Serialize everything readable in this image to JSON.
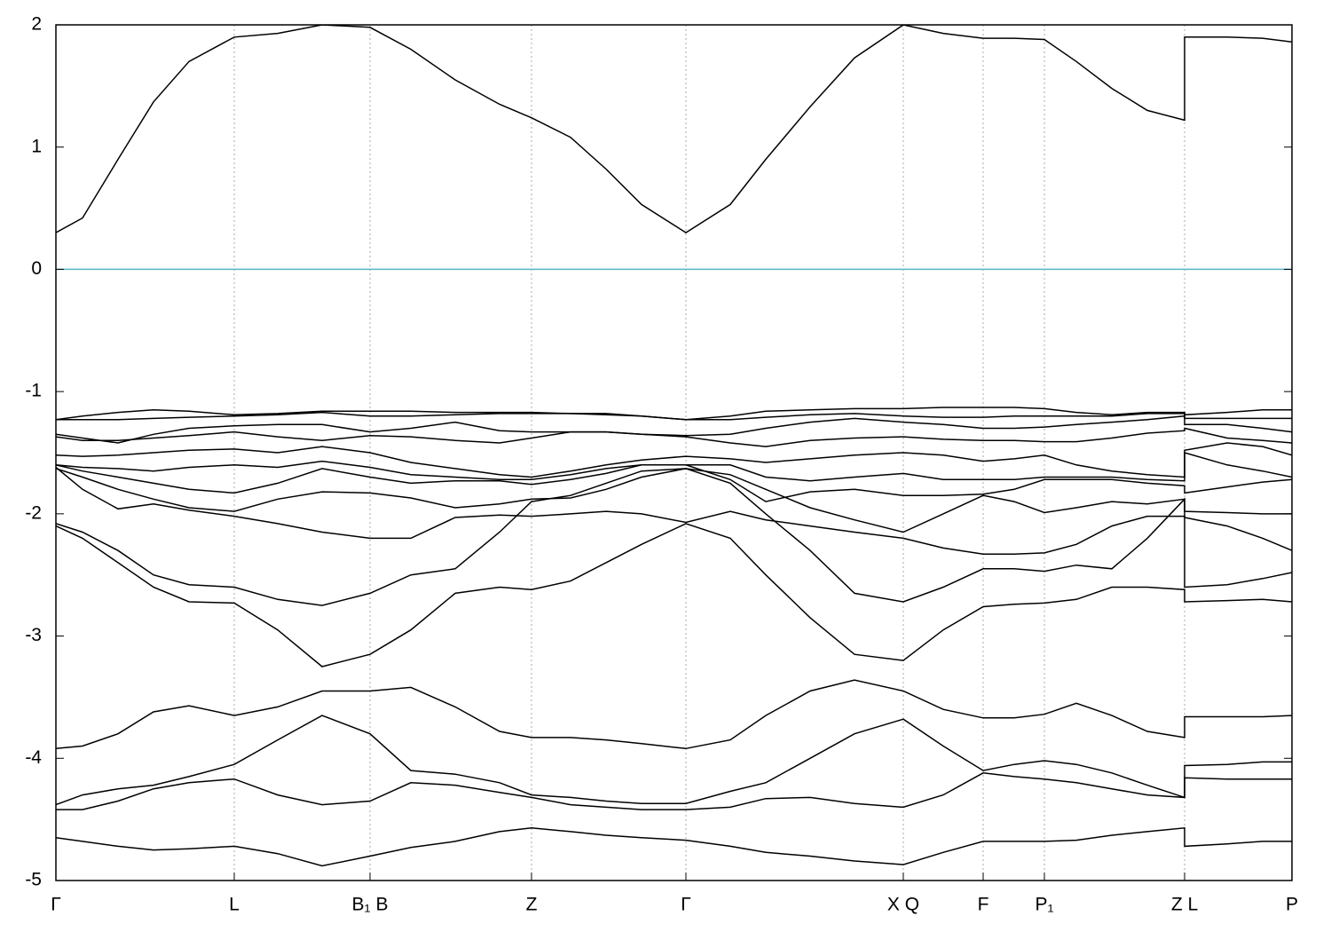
{
  "chart_data": {
    "type": "line",
    "x": [
      0,
      30,
      70,
      110,
      150,
      201,
      250,
      300,
      354,
      400,
      450,
      500,
      536,
      580,
      620,
      660,
      710,
      760,
      800,
      850,
      900,
      955,
      1000,
      1045,
      1080,
      1114,
      1150,
      1190,
      1230,
      1272,
      1272,
      1320,
      1360,
      1393
    ],
    "xlim": [
      0,
      1393
    ],
    "xticks": [
      {
        "value": 0,
        "label": "Γ"
      },
      {
        "value": 201,
        "label": "L"
      },
      {
        "value": 354,
        "label": "B₁ B"
      },
      {
        "value": 536,
        "label": "Z"
      },
      {
        "value": 710,
        "label": "Γ"
      },
      {
        "value": 955,
        "label": "X Q"
      },
      {
        "value": 1045,
        "label": "F"
      },
      {
        "value": 1114,
        "label": "P₁"
      },
      {
        "value": 1272,
        "label": "Z L"
      },
      {
        "value": 1393,
        "label": "P"
      }
    ],
    "ylim": [
      -5,
      2
    ],
    "yticks": [
      2,
      1,
      0,
      -1,
      -2,
      -3,
      -4,
      -5
    ],
    "xgrid": true,
    "reference_line": {
      "y": 0,
      "color": "#5ab4c8"
    },
    "series": [
      {
        "color": "#000000",
        "values": [
          0.3,
          0.42,
          0.9,
          1.37,
          1.7,
          1.9,
          1.93,
          2.0,
          1.98,
          1.8,
          1.55,
          1.35,
          1.24,
          1.08,
          0.82,
          0.53,
          0.3,
          0.53,
          0.9,
          1.33,
          1.73,
          2.0,
          1.93,
          1.89,
          1.89,
          1.88,
          1.7,
          1.48,
          1.3,
          1.22,
          1.9,
          1.9,
          1.89,
          1.86
        ]
      },
      {
        "color": "#000000",
        "values": [
          -1.23,
          -1.2,
          -1.17,
          -1.15,
          -1.16,
          -1.19,
          -1.18,
          -1.16,
          -1.16,
          -1.16,
          -1.17,
          -1.17,
          -1.17,
          -1.18,
          -1.18,
          -1.2,
          -1.23,
          -1.2,
          -1.16,
          -1.15,
          -1.14,
          -1.14,
          -1.13,
          -1.13,
          -1.13,
          -1.14,
          -1.17,
          -1.19,
          -1.17,
          -1.17,
          -1.19,
          -1.17,
          -1.15,
          -1.15
        ]
      },
      {
        "color": "#000000",
        "values": [
          -1.23,
          -1.23,
          -1.23,
          -1.22,
          -1.21,
          -1.2,
          -1.19,
          -1.17,
          -1.2,
          -1.2,
          -1.19,
          -1.18,
          -1.18,
          -1.18,
          -1.19,
          -1.2,
          -1.23,
          -1.23,
          -1.21,
          -1.19,
          -1.18,
          -1.2,
          -1.21,
          -1.21,
          -1.2,
          -1.2,
          -1.2,
          -1.2,
          -1.18,
          -1.18,
          -1.22,
          -1.22,
          -1.22,
          -1.22
        ]
      },
      {
        "color": "#000000",
        "values": [
          -1.35,
          -1.38,
          -1.42,
          -1.35,
          -1.3,
          -1.28,
          -1.27,
          -1.27,
          -1.33,
          -1.3,
          -1.25,
          -1.32,
          -1.33,
          -1.33,
          -1.33,
          -1.35,
          -1.36,
          -1.35,
          -1.3,
          -1.25,
          -1.22,
          -1.25,
          -1.27,
          -1.3,
          -1.3,
          -1.29,
          -1.27,
          -1.25,
          -1.23,
          -1.2,
          -1.27,
          -1.27,
          -1.3,
          -1.33
        ]
      },
      {
        "color": "#000000",
        "values": [
          -1.37,
          -1.4,
          -1.4,
          -1.38,
          -1.36,
          -1.33,
          -1.37,
          -1.4,
          -1.36,
          -1.37,
          -1.4,
          -1.42,
          -1.38,
          -1.33,
          -1.33,
          -1.35,
          -1.37,
          -1.42,
          -1.45,
          -1.4,
          -1.38,
          -1.37,
          -1.39,
          -1.4,
          -1.4,
          -1.41,
          -1.41,
          -1.38,
          -1.34,
          -1.32,
          -1.3,
          -1.38,
          -1.4,
          -1.42
        ]
      },
      {
        "color": "#000000",
        "values": [
          -1.52,
          -1.53,
          -1.52,
          -1.5,
          -1.48,
          -1.47,
          -1.5,
          -1.45,
          -1.5,
          -1.58,
          -1.63,
          -1.68,
          -1.7,
          -1.65,
          -1.6,
          -1.56,
          -1.53,
          -1.55,
          -1.58,
          -1.55,
          -1.52,
          -1.5,
          -1.52,
          -1.57,
          -1.55,
          -1.52,
          -1.6,
          -1.65,
          -1.68,
          -1.7,
          -1.48,
          -1.42,
          -1.45,
          -1.52
        ]
      },
      {
        "color": "#000000",
        "values": [
          -1.6,
          -1.62,
          -1.63,
          -1.65,
          -1.62,
          -1.6,
          -1.62,
          -1.57,
          -1.62,
          -1.68,
          -1.7,
          -1.72,
          -1.72,
          -1.68,
          -1.63,
          -1.6,
          -1.6,
          -1.6,
          -1.7,
          -1.73,
          -1.7,
          -1.67,
          -1.72,
          -1.72,
          -1.72,
          -1.7,
          -1.7,
          -1.7,
          -1.72,
          -1.73,
          -1.5,
          -1.6,
          -1.65,
          -1.7
        ]
      },
      {
        "color": "#000000",
        "values": [
          -1.6,
          -1.65,
          -1.7,
          -1.75,
          -1.8,
          -1.83,
          -1.75,
          -1.63,
          -1.7,
          -1.75,
          -1.73,
          -1.73,
          -1.76,
          -1.72,
          -1.67,
          -1.6,
          -1.6,
          -1.72,
          -1.9,
          -1.82,
          -1.8,
          -1.85,
          -1.85,
          -1.84,
          -1.8,
          -1.72,
          -1.72,
          -1.72,
          -1.75,
          -1.77,
          -1.83,
          -1.78,
          -1.74,
          -1.72
        ]
      },
      {
        "color": "#000000",
        "values": [
          -1.63,
          -1.7,
          -1.8,
          -1.88,
          -1.95,
          -1.98,
          -1.88,
          -1.82,
          -1.83,
          -1.87,
          -1.95,
          -1.92,
          -1.88,
          -1.87,
          -1.8,
          -1.7,
          -1.63,
          -1.68,
          -1.8,
          -1.95,
          -2.05,
          -2.15,
          -2.0,
          -1.85,
          -1.9,
          -1.99,
          -1.95,
          -1.9,
          -1.92,
          -1.88,
          -1.98,
          -1.99,
          -2.0,
          -2.0
        ]
      },
      {
        "color": "#000000",
        "values": [
          -1.62,
          -1.8,
          -1.96,
          -1.92,
          -1.97,
          -2.02,
          -2.08,
          -2.15,
          -2.2,
          -2.2,
          -2.03,
          -2.01,
          -2.02,
          -2.0,
          -1.98,
          -2.0,
          -2.07,
          -1.98,
          -2.05,
          -2.1,
          -2.15,
          -2.2,
          -2.28,
          -2.33,
          -2.33,
          -2.32,
          -2.25,
          -2.1,
          -2.02,
          -2.02,
          -2.03,
          -2.1,
          -2.2,
          -2.3
        ]
      },
      {
        "color": "#000000",
        "values": [
          -2.08,
          -2.15,
          -2.3,
          -2.5,
          -2.58,
          -2.6,
          -2.7,
          -2.75,
          -2.65,
          -2.5,
          -2.45,
          -2.15,
          -1.9,
          -1.85,
          -1.75,
          -1.65,
          -1.63,
          -1.75,
          -2.0,
          -2.3,
          -2.65,
          -2.72,
          -2.6,
          -2.45,
          -2.45,
          -2.47,
          -2.42,
          -2.45,
          -2.2,
          -1.88,
          -2.6,
          -2.58,
          -2.53,
          -2.48
        ]
      },
      {
        "color": "#000000",
        "values": [
          -2.1,
          -2.2,
          -2.4,
          -2.6,
          -2.72,
          -2.73,
          -2.95,
          -3.25,
          -3.15,
          -2.95,
          -2.65,
          -2.6,
          -2.62,
          -2.55,
          -2.4,
          -2.25,
          -2.08,
          -2.2,
          -2.5,
          -2.85,
          -3.15,
          -3.2,
          -2.95,
          -2.76,
          -2.74,
          -2.73,
          -2.7,
          -2.6,
          -2.6,
          -2.62,
          -2.72,
          -2.71,
          -2.7,
          -2.72
        ]
      },
      {
        "color": "#000000",
        "values": [
          -3.92,
          -3.9,
          -3.8,
          -3.62,
          -3.57,
          -3.65,
          -3.58,
          -3.45,
          -3.45,
          -3.42,
          -3.58,
          -3.78,
          -3.83,
          -3.83,
          -3.85,
          -3.88,
          -3.92,
          -3.85,
          -3.65,
          -3.45,
          -3.36,
          -3.45,
          -3.6,
          -3.67,
          -3.67,
          -3.64,
          -3.55,
          -3.65,
          -3.78,
          -3.83,
          -3.66,
          -3.66,
          -3.66,
          -3.65
        ]
      },
      {
        "color": "#000000",
        "values": [
          -4.38,
          -4.3,
          -4.25,
          -4.22,
          -4.15,
          -4.05,
          -3.85,
          -3.65,
          -3.8,
          -4.1,
          -4.13,
          -4.2,
          -4.3,
          -4.32,
          -4.35,
          -4.37,
          -4.37,
          -4.27,
          -4.2,
          -4.0,
          -3.8,
          -3.68,
          -3.9,
          -4.1,
          -4.05,
          -4.02,
          -4.05,
          -4.12,
          -4.22,
          -4.32,
          -4.06,
          -4.05,
          -4.03,
          -4.03
        ]
      },
      {
        "color": "#000000",
        "values": [
          -4.42,
          -4.42,
          -4.35,
          -4.25,
          -4.2,
          -4.17,
          -4.3,
          -4.38,
          -4.35,
          -4.2,
          -4.22,
          -4.28,
          -4.32,
          -4.38,
          -4.4,
          -4.42,
          -4.42,
          -4.4,
          -4.33,
          -4.32,
          -4.37,
          -4.4,
          -4.3,
          -4.12,
          -4.15,
          -4.17,
          -4.2,
          -4.25,
          -4.3,
          -4.32,
          -4.16,
          -4.17,
          -4.17,
          -4.17
        ]
      },
      {
        "color": "#000000",
        "values": [
          -4.65,
          -4.68,
          -4.72,
          -4.75,
          -4.74,
          -4.72,
          -4.78,
          -4.88,
          -4.8,
          -4.73,
          -4.68,
          -4.6,
          -4.57,
          -4.6,
          -4.63,
          -4.65,
          -4.67,
          -4.72,
          -4.77,
          -4.8,
          -4.84,
          -4.87,
          -4.77,
          -4.68,
          -4.68,
          -4.68,
          -4.67,
          -4.63,
          -4.6,
          -4.57,
          -4.72,
          -4.7,
          -4.68,
          -4.68
        ]
      }
    ]
  }
}
